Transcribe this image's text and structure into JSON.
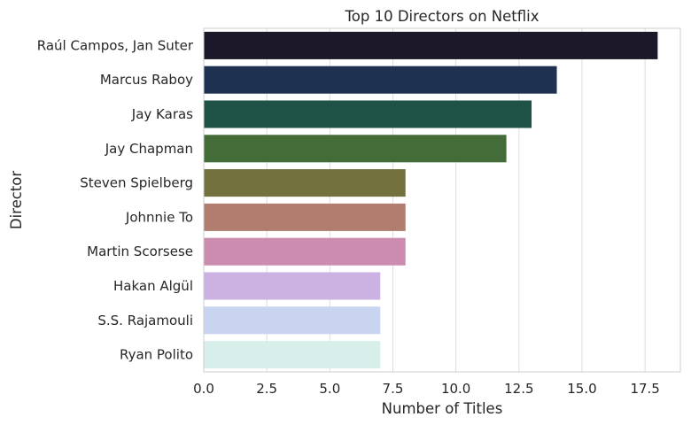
{
  "chart_data": {
    "type": "bar",
    "orientation": "horizontal",
    "title": "Top 10 Directors on Netflix",
    "xlabel": "Number of Titles",
    "ylabel": "Director",
    "xlim": [
      0,
      18.9
    ],
    "xticks": [
      0,
      2.5,
      5,
      7.5,
      10,
      12.5,
      15,
      17.5
    ],
    "xtick_labels": [
      "0.0",
      "2.5",
      "5.0",
      "7.5",
      "10.0",
      "12.5",
      "15.0",
      "17.5"
    ],
    "grid": "vertical",
    "categories": [
      "Raúl Campos, Jan Suter",
      "Marcus Raboy",
      "Jay Karas",
      "Jay Chapman",
      "Steven Spielberg",
      "Johnnie To",
      "Martin Scorsese",
      "Hakan Algül",
      "S.S. Rajamouli",
      "Ryan Polito"
    ],
    "values": [
      18,
      14,
      13,
      12,
      8,
      8,
      8,
      7,
      7,
      7
    ],
    "colors": [
      "#1c1729",
      "#1e3150",
      "#1f5246",
      "#436c39",
      "#73723e",
      "#b07d6f",
      "#cb8cb0",
      "#cbb2e2",
      "#c9d5f0",
      "#d8eeeb"
    ]
  }
}
